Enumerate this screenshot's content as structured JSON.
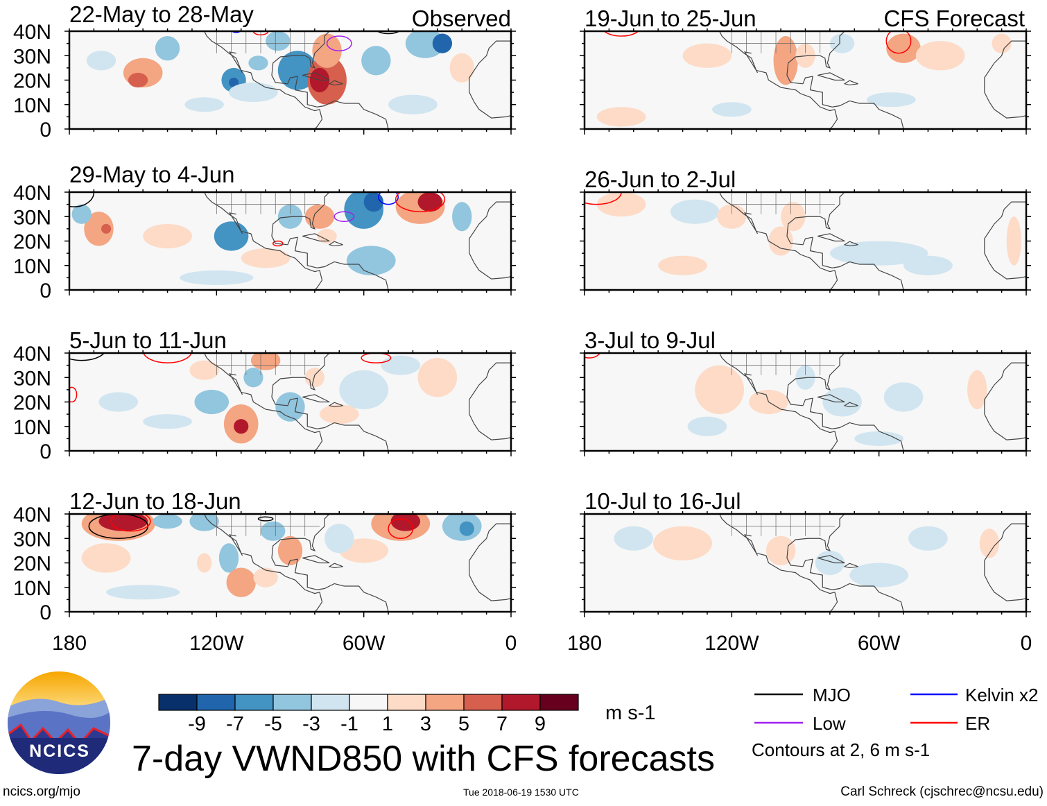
{
  "colors": {
    "levels": [
      "#08306b",
      "#2166ac",
      "#4393c3",
      "#92c5de",
      "#d1e5f0",
      "#f7f7f7",
      "#fddbc7",
      "#f4a582",
      "#d6604d",
      "#b2182b",
      "#67001f"
    ],
    "MJO": "#000000",
    "Kelvin": "#0000ff",
    "Low": "#a020f0",
    "ER": "#ff0000"
  },
  "observed_label": "Observed",
  "forecast_label": "CFS Forecast",
  "panels_left": [
    {
      "title": "22-May to 28-May"
    },
    {
      "title": "29-May to 4-Jun"
    },
    {
      "title": "5-Jun to 11-Jun"
    },
    {
      "title": "12-Jun to 18-Jun"
    }
  ],
  "panels_right": [
    {
      "title": "19-Jun to 25-Jun"
    },
    {
      "title": "26-Jun to 2-Jul"
    },
    {
      "title": "3-Jul to 9-Jul"
    },
    {
      "title": "10-Jul to 16-Jul"
    }
  ],
  "lat_labels": [
    "40N",
    "30N",
    "20N",
    "10N",
    "0"
  ],
  "lon_labels": [
    "180",
    "120W",
    "60W",
    "0"
  ],
  "colorbar": {
    "ticks": [
      "-9",
      "-7",
      "-5",
      "-3",
      "-1",
      "1",
      "3",
      "5",
      "7",
      "9"
    ],
    "units": "m s-1"
  },
  "legend": {
    "mjo": "MJO",
    "kelvin": "Kelvin x2",
    "low": "Low",
    "er": "ER",
    "contours": "Contours at 2, 6 m s-1"
  },
  "logo_text": "NCICS",
  "main_title": "7-day VWND850 with CFS forecasts",
  "footer": {
    "url": "ncics.org/mjo",
    "timestamp": "Tue 2018-06-19 1530 UTC",
    "credit": "Carl Schreck (cjschrec@ncsu.edu)"
  }
}
